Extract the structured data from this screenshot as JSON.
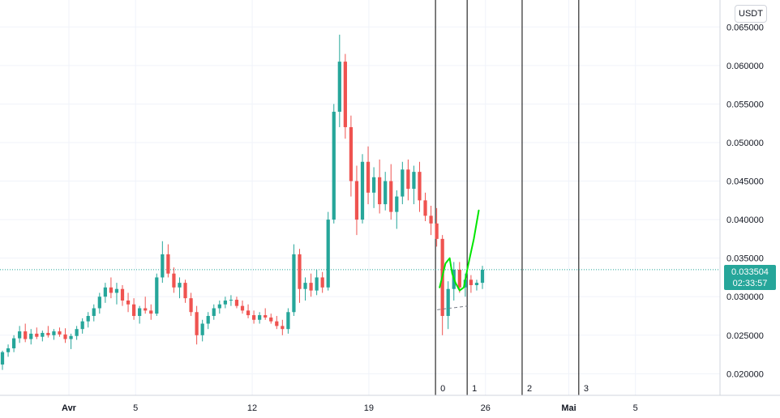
{
  "currency_button": "USDT",
  "price_tag": {
    "price": "0.033504",
    "countdown": "02:33:57",
    "color": "#26a69a"
  },
  "colors": {
    "up": "#26a69a",
    "down": "#ef5350",
    "grid": "#f0f3fa",
    "drawing": "#00e600"
  },
  "chart_data": {
    "type": "candlestick",
    "y_ticks": [
      "0.065000",
      "0.060000",
      "0.055000",
      "0.050000",
      "0.045000",
      "0.040000",
      "0.035000",
      "0.030000",
      "0.025000",
      "0.020000"
    ],
    "ylim": [
      0.0172,
      0.0685
    ],
    "x_ticks": [
      {
        "label": "Avr",
        "bold": true,
        "day": 1
      },
      {
        "label": "5",
        "bold": false,
        "day": 5
      },
      {
        "label": "12",
        "bold": false,
        "day": 12
      },
      {
        "label": "19",
        "bold": false,
        "day": 19
      },
      {
        "label": "26",
        "bold": false,
        "day": 26
      },
      {
        "label": "Mai",
        "bold": true,
        "day": 31
      },
      {
        "label": "5",
        "bold": false,
        "day": 35
      }
    ],
    "vertical_lines": [
      {
        "label": "0",
        "day": 23.0
      },
      {
        "label": "1",
        "day": 24.9
      },
      {
        "label": "2",
        "day": 28.2
      },
      {
        "label": "3",
        "day": 31.6
      }
    ],
    "last_price": 0.033504,
    "candles": [
      [
        0.0212,
        0.023,
        0.0205,
        0.0228
      ],
      [
        0.0228,
        0.0238,
        0.0222,
        0.0233
      ],
      [
        0.0233,
        0.025,
        0.0228,
        0.0246
      ],
      [
        0.0246,
        0.0262,
        0.024,
        0.0255
      ],
      [
        0.0255,
        0.0265,
        0.0241,
        0.0245
      ],
      [
        0.0245,
        0.0258,
        0.0238,
        0.0252
      ],
      [
        0.0252,
        0.026,
        0.0245,
        0.0248
      ],
      [
        0.0248,
        0.0256,
        0.0242,
        0.0253
      ],
      [
        0.0253,
        0.0262,
        0.0247,
        0.025
      ],
      [
        0.025,
        0.0258,
        0.0244,
        0.0255
      ],
      [
        0.0255,
        0.026,
        0.0248,
        0.0251
      ],
      [
        0.0251,
        0.0259,
        0.024,
        0.0245
      ],
      [
        0.0245,
        0.0252,
        0.0232,
        0.0249
      ],
      [
        0.0249,
        0.0262,
        0.0244,
        0.0258
      ],
      [
        0.0258,
        0.0272,
        0.0252,
        0.0268
      ],
      [
        0.0268,
        0.028,
        0.026,
        0.0275
      ],
      [
        0.0275,
        0.029,
        0.0268,
        0.0285
      ],
      [
        0.0285,
        0.0305,
        0.0278,
        0.03
      ],
      [
        0.03,
        0.0318,
        0.0292,
        0.0312
      ],
      [
        0.0312,
        0.0325,
        0.0298,
        0.0305
      ],
      [
        0.0305,
        0.0318,
        0.029,
        0.031
      ],
      [
        0.031,
        0.0315,
        0.0288,
        0.0295
      ],
      [
        0.0295,
        0.0305,
        0.028,
        0.029
      ],
      [
        0.029,
        0.0298,
        0.027,
        0.0275
      ],
      [
        0.0275,
        0.0288,
        0.0265,
        0.0285
      ],
      [
        0.0285,
        0.03,
        0.0278,
        0.0282
      ],
      [
        0.0282,
        0.029,
        0.027,
        0.0278
      ],
      [
        0.0278,
        0.033,
        0.0275,
        0.0325
      ],
      [
        0.0325,
        0.0372,
        0.0318,
        0.0355
      ],
      [
        0.0355,
        0.0368,
        0.0325,
        0.033
      ],
      [
        0.033,
        0.0338,
        0.0305,
        0.0312
      ],
      [
        0.0312,
        0.0325,
        0.0298,
        0.0318
      ],
      [
        0.0318,
        0.0322,
        0.0292,
        0.0298
      ],
      [
        0.0298,
        0.0305,
        0.0275,
        0.028
      ],
      [
        0.028,
        0.0288,
        0.0238,
        0.025
      ],
      [
        0.025,
        0.027,
        0.0242,
        0.0265
      ],
      [
        0.0265,
        0.028,
        0.0258,
        0.0275
      ],
      [
        0.0275,
        0.029,
        0.027,
        0.0285
      ],
      [
        0.0285,
        0.0295,
        0.0278,
        0.029
      ],
      [
        0.029,
        0.03,
        0.0285,
        0.0295
      ],
      [
        0.0295,
        0.0302,
        0.0288,
        0.0296
      ],
      [
        0.0296,
        0.03,
        0.0285,
        0.0288
      ],
      [
        0.0288,
        0.0295,
        0.0278,
        0.0282
      ],
      [
        0.0282,
        0.029,
        0.0272,
        0.0276
      ],
      [
        0.0276,
        0.0282,
        0.0265,
        0.027
      ],
      [
        0.027,
        0.028,
        0.0265,
        0.0276
      ],
      [
        0.0276,
        0.0285,
        0.027,
        0.0273
      ],
      [
        0.0273,
        0.0278,
        0.0265,
        0.0268
      ],
      [
        0.0268,
        0.0275,
        0.0258,
        0.0262
      ],
      [
        0.0262,
        0.027,
        0.025,
        0.0258
      ],
      [
        0.0258,
        0.0285,
        0.0252,
        0.028
      ],
      [
        0.028,
        0.0368,
        0.0275,
        0.0355
      ],
      [
        0.0355,
        0.0362,
        0.0292,
        0.031
      ],
      [
        0.031,
        0.0325,
        0.0295,
        0.0318
      ],
      [
        0.0318,
        0.033,
        0.03,
        0.0308
      ],
      [
        0.0308,
        0.0335,
        0.0302,
        0.0325
      ],
      [
        0.0325,
        0.0332,
        0.0305,
        0.0312
      ],
      [
        0.0312,
        0.041,
        0.0308,
        0.04
      ],
      [
        0.04,
        0.055,
        0.0395,
        0.054
      ],
      [
        0.054,
        0.064,
        0.052,
        0.0605
      ],
      [
        0.0605,
        0.0615,
        0.0505,
        0.052
      ],
      [
        0.052,
        0.0535,
        0.043,
        0.045
      ],
      [
        0.045,
        0.047,
        0.038,
        0.04
      ],
      [
        0.04,
        0.0485,
        0.0395,
        0.0475
      ],
      [
        0.0475,
        0.0495,
        0.042,
        0.0435
      ],
      [
        0.0435,
        0.0468,
        0.0415,
        0.0455
      ],
      [
        0.0455,
        0.0478,
        0.0408,
        0.042
      ],
      [
        0.042,
        0.0462,
        0.0412,
        0.045
      ],
      [
        0.045,
        0.0472,
        0.04,
        0.041
      ],
      [
        0.041,
        0.0438,
        0.0388,
        0.043
      ],
      [
        0.043,
        0.0475,
        0.042,
        0.0465
      ],
      [
        0.0465,
        0.0478,
        0.0425,
        0.044
      ],
      [
        0.044,
        0.047,
        0.042,
        0.0462
      ],
      [
        0.0462,
        0.0475,
        0.041,
        0.0425
      ],
      [
        0.0425,
        0.0435,
        0.0398,
        0.0405
      ],
      [
        0.0405,
        0.0418,
        0.038,
        0.0395
      ],
      [
        0.0395,
        0.0415,
        0.0365,
        0.0375
      ],
      [
        0.0375,
        0.038,
        0.025,
        0.0275
      ],
      [
        0.0275,
        0.032,
        0.0258,
        0.031
      ],
      [
        0.031,
        0.0345,
        0.0295,
        0.0335
      ],
      [
        0.0335,
        0.0345,
        0.0305,
        0.0312
      ],
      [
        0.0312,
        0.033,
        0.03,
        0.0322
      ],
      [
        0.0322,
        0.0328,
        0.0305,
        0.0315
      ],
      [
        0.0315,
        0.0322,
        0.0308,
        0.0318
      ],
      [
        0.0318,
        0.034,
        0.031,
        0.0335
      ]
    ],
    "annotations": [
      {
        "type": "curve",
        "color": "#00e600",
        "points": [
          [
            23.25,
            0.0312
          ],
          [
            23.6,
            0.0343
          ],
          [
            23.85,
            0.035
          ],
          [
            24.0,
            0.033
          ],
          [
            24.2,
            0.0318
          ],
          [
            24.45,
            0.0308
          ],
          [
            24.7,
            0.0312
          ],
          [
            24.95,
            0.034
          ],
          [
            25.3,
            0.0375
          ],
          [
            25.6,
            0.0412
          ]
        ]
      },
      {
        "type": "dashed",
        "color": "#787b86",
        "points": [
          [
            23.1,
            0.0283
          ],
          [
            24.95,
            0.0288
          ]
        ]
      }
    ]
  }
}
